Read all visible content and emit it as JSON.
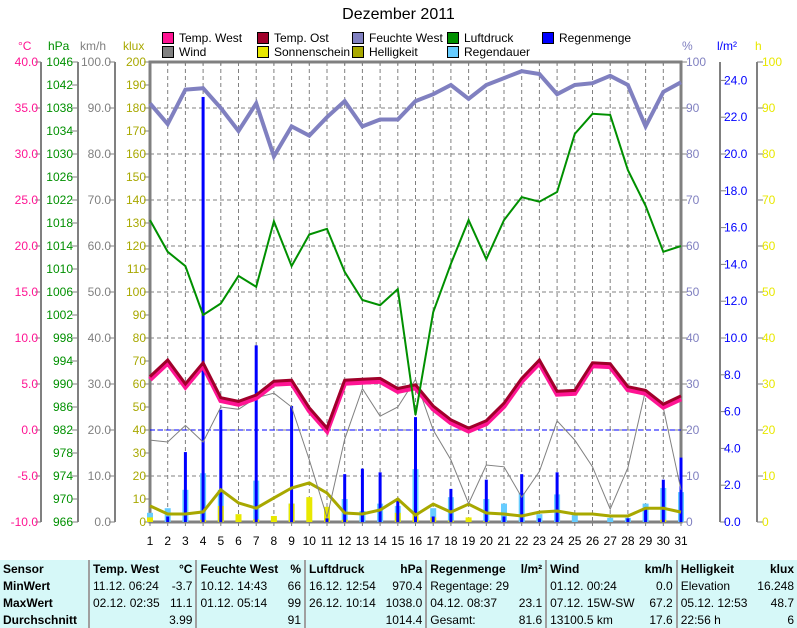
{
  "chart_data": {
    "type": "line",
    "title": "Dezember 2011",
    "x": [
      1,
      2,
      3,
      4,
      5,
      6,
      7,
      8,
      9,
      10,
      11,
      12,
      13,
      14,
      15,
      16,
      17,
      18,
      19,
      20,
      21,
      22,
      23,
      24,
      25,
      26,
      27,
      28,
      29,
      30,
      31
    ],
    "x_tick_labels": [
      "1",
      "2",
      "3",
      "4",
      "5",
      "6",
      "7",
      "8",
      "9",
      "10",
      "11",
      "12",
      "13",
      "14",
      "15",
      "16",
      "17",
      "18",
      "19",
      "20",
      "21",
      "22",
      "23",
      "24",
      "25",
      "26",
      "27",
      "28",
      "29",
      "30",
      "31"
    ],
    "axes": {
      "temp": {
        "unit": "°C",
        "ylim": [
          -10,
          40
        ],
        "ticks": [
          "-10.0",
          "-5.0",
          "0.0",
          "5.0",
          "10.0",
          "15.0",
          "20.0",
          "25.0",
          "30.0",
          "35.0",
          "40.0"
        ],
        "color": "#ff1493"
      },
      "pressure": {
        "unit": "hPa",
        "ylim": [
          966,
          1046
        ],
        "ticks": [
          "966",
          "970",
          "974",
          "978",
          "982",
          "986",
          "990",
          "994",
          "998",
          "1002",
          "1006",
          "1010",
          "1014",
          "1018",
          "1022",
          "1026",
          "1030",
          "1034",
          "1038",
          "1042",
          "1046"
        ],
        "color": "#009000"
      },
      "wind": {
        "unit": "km/h",
        "ylim": [
          0,
          100
        ],
        "ticks": [
          "0.0",
          "10.0",
          "20.0",
          "30.0",
          "40.0",
          "50.0",
          "60.0",
          "70.0",
          "80.0",
          "90.0",
          "100.0"
        ],
        "color": "#808080"
      },
      "klux": {
        "unit": "klux",
        "ylim": [
          0,
          200
        ],
        "ticks": [
          "0",
          "10",
          "20",
          "30",
          "40",
          "50",
          "60",
          "70",
          "80",
          "90",
          "100",
          "110",
          "120",
          "130",
          "140",
          "150",
          "160",
          "170",
          "180",
          "190",
          "200"
        ],
        "color": "#a8a800"
      },
      "humidity": {
        "unit": "%",
        "ylim": [
          0,
          100
        ],
        "ticks": [
          "0",
          "10",
          "20",
          "30",
          "40",
          "50",
          "60",
          "70",
          "80",
          "90",
          "100"
        ],
        "color": "#8080c0"
      },
      "rain": {
        "unit": "l/m²",
        "ylim": [
          0,
          25
        ],
        "ticks": [
          "0.0",
          "2.0",
          "4.0",
          "6.0",
          "8.0",
          "10.0",
          "12.0",
          "14.0",
          "16.0",
          "18.0",
          "20.0",
          "22.0",
          "24.0"
        ],
        "color": "#0000ff"
      },
      "hours": {
        "unit": "h",
        "ylim": [
          0,
          100
        ],
        "ticks": [
          "0",
          "10",
          "20",
          "30",
          "40",
          "50",
          "60",
          "70",
          "80",
          "90",
          "100"
        ],
        "color": "#e8e800"
      }
    },
    "series": [
      {
        "name": "Temp. West",
        "axis": "temp",
        "kind": "line",
        "color": "#ff1493",
        "values": [
          5.6,
          7.4,
          4.8,
          7.1,
          3.3,
          2.9,
          3.6,
          5.1,
          5.2,
          2.2,
          0.0,
          5.2,
          5.3,
          5.4,
          4.3,
          4.7,
          2.4,
          0.9,
          0.0,
          0.8,
          2.7,
          5.4,
          7.4,
          4.0,
          4.1,
          7.1,
          7.0,
          4.5,
          4.1,
          2.6,
          3.5
        ]
      },
      {
        "name": "Temp. Ost",
        "axis": "temp",
        "kind": "line",
        "color": "#a0002a",
        "values": [
          5.7,
          7.5,
          4.9,
          7.2,
          3.4,
          3.0,
          3.7,
          5.2,
          5.3,
          2.3,
          0.1,
          5.3,
          5.4,
          5.5,
          4.4,
          4.8,
          2.5,
          1.0,
          0.1,
          0.9,
          2.8,
          5.5,
          7.5,
          4.1,
          4.2,
          7.2,
          7.1,
          4.6,
          4.2,
          2.7,
          3.6
        ]
      },
      {
        "name": "Feuchte West",
        "axis": "humidity",
        "kind": "line",
        "color": "#8080c0",
        "values": [
          91,
          86.5,
          94,
          94.3,
          90,
          85,
          91,
          79.5,
          86,
          84,
          88,
          91.5,
          86,
          87.5,
          87.5,
          91.5,
          93,
          95,
          92,
          95,
          96.5,
          98,
          97.4,
          93,
          95,
          95.4,
          97,
          95,
          86,
          93.5,
          95.6
        ]
      },
      {
        "name": "Luftdruck",
        "axis": "pressure",
        "kind": "line",
        "color": "#009000",
        "values": [
          1018.5,
          1013,
          1010.5,
          1002,
          1004,
          1008.8,
          1006.9,
          1018.3,
          1010.5,
          1016,
          1017,
          1009.5,
          1004.6,
          1003.7,
          1006.5,
          984.6,
          1002.5,
          1010.9,
          1018.5,
          1011.7,
          1018.5,
          1022.5,
          1021.7,
          1023.4,
          1033.5,
          1037,
          1036.8,
          1027.2,
          1021,
          1013,
          1014
        ]
      },
      {
        "name": "Wind",
        "axis": "wind",
        "kind": "line",
        "color": "#808080",
        "values": [
          17.8,
          17.4,
          21,
          17.4,
          25,
          24.5,
          27,
          28,
          25,
          13.5,
          1,
          18,
          29,
          23,
          25,
          31,
          20,
          13.5,
          4,
          12.4,
          12,
          5.4,
          11,
          22,
          17.8,
          12,
          2.8,
          11.8,
          28.7,
          24.8,
          7
        ]
      },
      {
        "name": "Sonnenschein",
        "axis": "hours",
        "kind": "bar",
        "color": "#e8e800",
        "values": [
          1,
          0,
          0,
          0.5,
          3.5,
          1.7,
          0.6,
          1.3,
          4,
          5.4,
          3.3,
          0.5,
          0,
          0,
          2,
          2,
          1,
          0.3,
          1,
          0.2,
          0,
          0,
          0,
          0,
          0,
          0,
          0,
          0,
          0,
          0.5,
          0
        ]
      },
      {
        "name": "Helligkeit",
        "axis": "klux",
        "kind": "line",
        "color": "#a8a800",
        "values": [
          7,
          3.5,
          3.5,
          4.4,
          14,
          8.3,
          6,
          10.5,
          14.8,
          17,
          12.6,
          3.9,
          3.5,
          5.2,
          10,
          3,
          7.8,
          4.3,
          7.8,
          3.9,
          3.5,
          2.6,
          4.3,
          4.8,
          3.5,
          3.5,
          2.6,
          2.6,
          6,
          6,
          4.3
        ]
      },
      {
        "name": "Regendauer",
        "axis": "hours",
        "kind": "bar",
        "color": "#66ccff",
        "values": [
          2,
          3,
          7,
          10.6,
          7,
          0,
          9,
          0,
          4,
          0,
          0,
          5,
          2.4,
          4,
          3.5,
          11.5,
          3,
          5.4,
          0,
          5,
          4,
          6.3,
          1.7,
          6,
          1.5,
          0,
          0.9,
          0.9,
          4,
          7.4,
          6.5
        ]
      },
      {
        "name": "Regenmenge",
        "axis": "rain",
        "kind": "bar",
        "color": "#0000ff",
        "values": [
          0,
          0.3,
          3.8,
          23.1,
          6.1,
          0,
          9.6,
          0,
          6.3,
          0,
          0.2,
          2.6,
          2.9,
          2.7,
          1.3,
          5.7,
          0.3,
          1.8,
          0,
          2.3,
          0.3,
          2.6,
          0.2,
          2.7,
          0,
          0,
          0,
          0.2,
          0.8,
          2.3,
          3.5
        ]
      }
    ],
    "reference_line": {
      "axis": "temp",
      "value": 0,
      "color": "#0000ff"
    },
    "grid": true,
    "legend_placement": "top"
  },
  "legend": [
    {
      "label": "Temp. West",
      "color": "#ff1493"
    },
    {
      "label": "Temp. Ost",
      "color": "#a0002a"
    },
    {
      "label": "Feuchte West",
      "color": "#8080c0"
    },
    {
      "label": "Luftdruck",
      "color": "#009000"
    },
    {
      "label": "Regenmenge",
      "color": "#0000ff"
    },
    {
      "label": "Wind",
      "color": "#808080"
    },
    {
      "label": "Sonnenschein",
      "color": "#e8e800"
    },
    {
      "label": "Helligkeit",
      "color": "#a8a800"
    },
    {
      "label": "Regendauer",
      "color": "#66ccff"
    }
  ],
  "table": {
    "headers": [
      "Sensor",
      "Temp. West",
      "°C",
      "Feuchte West",
      "%",
      "Luftdruck",
      "hPa",
      "Regenmenge",
      "l/m²",
      "Wind",
      "km/h",
      "Helligkeit",
      "klux"
    ],
    "rows": [
      [
        "MinWert",
        "11.12.  06:24",
        "-3.7",
        "10.12.  14:43",
        "66",
        "16.12.  12:54",
        "970.4",
        "Regentage: 29",
        "",
        "01.12.  00:24",
        "0.0",
        "Elevation",
        "16.248"
      ],
      [
        "MaxWert",
        "02.12.  02:35",
        "11.1",
        "01.12.  05:14",
        "99",
        "26.12.  10:14",
        "1038.0",
        "04.12.  08:37",
        "23.1",
        "07.12.  15W-SW",
        "67.2",
        "05.12.  12:53",
        "48.7"
      ],
      [
        "Durchschnitt",
        "",
        "3.99",
        "",
        "91",
        "",
        "1014.4",
        "Gesamt:",
        "81.6",
        "13100.5 km",
        "17.6",
        "22:56 h",
        "6"
      ]
    ]
  }
}
